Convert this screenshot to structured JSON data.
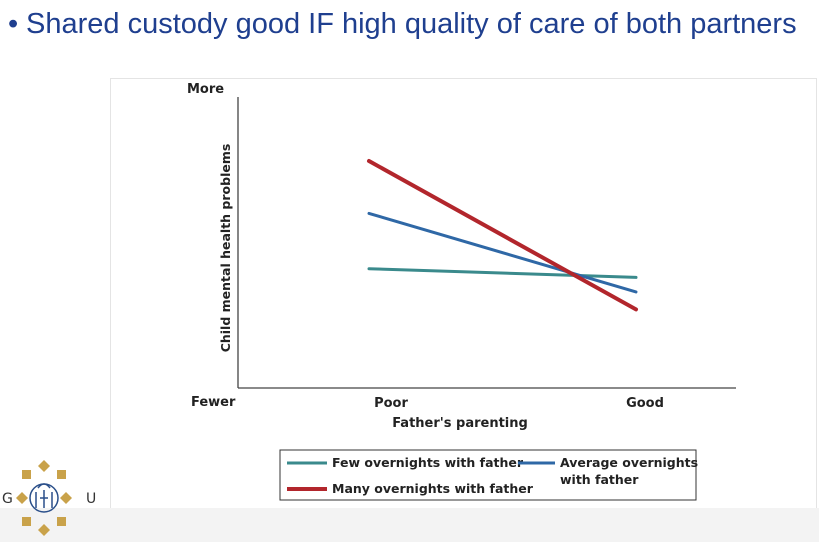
{
  "slide": {
    "bullet": "•",
    "title": "Shared custody good IF high quality of care of both partners"
  },
  "logo": {
    "left_letter": "G",
    "right_letter": "U"
  },
  "colors": {
    "title": "#1f3f8f",
    "few": "#3a8a8c",
    "average": "#2f68a6",
    "many": "#b2262c"
  },
  "chart_data": {
    "type": "line",
    "x": [
      "Poor",
      "Good"
    ],
    "xlabel": "Father's parenting",
    "ylabel": "Child mental health problems",
    "y_top_label": "More",
    "y_bottom_label": "Fewer",
    "ylim": [
      0,
      100
    ],
    "grid": false,
    "legend_position": "bottom",
    "series": [
      {
        "name": "Few overnights with father",
        "values": [
          41,
          38
        ],
        "color": "#3a8a8c",
        "width": 3
      },
      {
        "name": "Average overnights with father",
        "values": [
          60,
          33
        ],
        "color": "#2f68a6",
        "width": 3
      },
      {
        "name": "Many overnights with father",
        "values": [
          78,
          27
        ],
        "color": "#b2262c",
        "width": 4
      }
    ]
  }
}
